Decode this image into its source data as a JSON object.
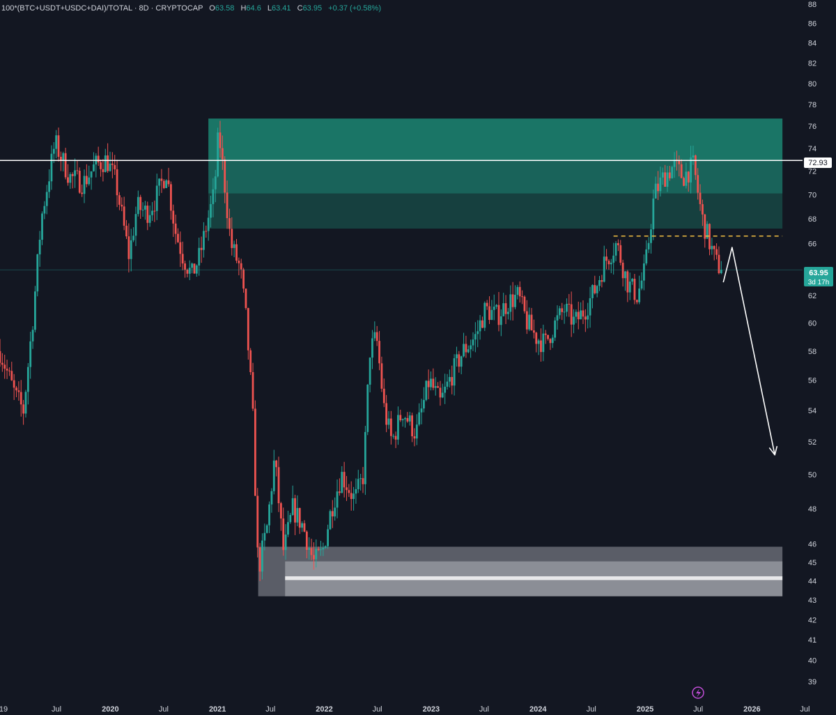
{
  "legend": {
    "symbol": "100*(BTC+USDT+USDC+DAI)/TOTAL · 8D · CRYPTOCAP",
    "open_key": "O",
    "open": "63.58",
    "high_key": "H",
    "high": "64.6",
    "low_key": "L",
    "low": "63.41",
    "close_key": "C",
    "close": "63.95",
    "change": "+0.37 (+0.58%)"
  },
  "price_tags": {
    "level": "72.93",
    "last_price": "63.95",
    "countdown": "3d 17h"
  },
  "colors": {
    "background": "#131722",
    "up": "#26a69a",
    "down": "#ef5350",
    "supply_zone": "#1f9e86",
    "demand_zone": "#9598a1",
    "level_line": "#ffffff",
    "dashed_level": "#f5c242",
    "projection_arrow": "#ffffff"
  },
  "chart_data": {
    "type": "candlestick",
    "interval": "8D",
    "scale": "log",
    "ylim": [
      38.7,
      88
    ],
    "y_ticks": [
      39,
      40,
      41,
      42,
      43,
      44,
      45,
      46,
      48,
      50,
      52,
      54,
      56,
      58,
      60,
      62,
      64,
      66,
      68,
      70,
      72,
      74,
      76,
      78,
      80,
      82,
      84,
      86,
      88
    ],
    "x_axis": {
      "range": [
        "2018-12-20",
        "2026-10-15"
      ],
      "ticks": [
        {
          "date": "2019-01-01",
          "label": "19"
        },
        {
          "date": "2019-07-01",
          "label": "Jul"
        },
        {
          "date": "2020-01-01",
          "label": "2020"
        },
        {
          "date": "2020-07-01",
          "label": "Jul"
        },
        {
          "date": "2021-01-01",
          "label": "2021"
        },
        {
          "date": "2021-07-01",
          "label": "Jul"
        },
        {
          "date": "2022-01-01",
          "label": "2022"
        },
        {
          "date": "2022-07-01",
          "label": "Jul"
        },
        {
          "date": "2023-01-01",
          "label": "2023"
        },
        {
          "date": "2023-07-01",
          "label": "Jul"
        },
        {
          "date": "2024-01-01",
          "label": "2024"
        },
        {
          "date": "2024-07-01",
          "label": "Jul"
        },
        {
          "date": "2025-01-01",
          "label": "2025"
        },
        {
          "date": "2025-07-01",
          "label": "Jul"
        },
        {
          "date": "2026-01-01",
          "label": "2026"
        },
        {
          "date": "2026-07-01",
          "label": "Jul"
        }
      ]
    },
    "price_path": [
      [
        "2018-12-20",
        58
      ],
      [
        "2019-02-10",
        55
      ],
      [
        "2019-03-10",
        54
      ],
      [
        "2019-04-10",
        60
      ],
      [
        "2019-05-10",
        68
      ],
      [
        "2019-06-26",
        74.5
      ],
      [
        "2019-08-15",
        71.5
      ],
      [
        "2019-10-01",
        71
      ],
      [
        "2019-11-10",
        72.5
      ],
      [
        "2019-12-20",
        73
      ],
      [
        "2020-01-20",
        71
      ],
      [
        "2020-03-05",
        65
      ],
      [
        "2020-04-01",
        69
      ],
      [
        "2020-05-05",
        68.5
      ],
      [
        "2020-06-01",
        69.5
      ],
      [
        "2020-07-10",
        72
      ],
      [
        "2020-08-10",
        67
      ],
      [
        "2020-09-05",
        65
      ],
      [
        "2020-10-05",
        63.5
      ],
      [
        "2020-11-01",
        65
      ],
      [
        "2020-11-25",
        67.5
      ],
      [
        "2020-12-20",
        70
      ],
      [
        "2021-01-05",
        75.5
      ],
      [
        "2021-01-25",
        71
      ],
      [
        "2021-02-15",
        66
      ],
      [
        "2021-03-20",
        64
      ],
      [
        "2021-04-10",
        60
      ],
      [
        "2021-05-01",
        54
      ],
      [
        "2021-05-20",
        44.5
      ],
      [
        "2021-06-20",
        47
      ],
      [
        "2021-07-15",
        51
      ],
      [
        "2021-08-15",
        45.5
      ],
      [
        "2021-09-15",
        48
      ],
      [
        "2021-10-20",
        47
      ],
      [
        "2021-11-25",
        45
      ],
      [
        "2021-12-25",
        45.5
      ],
      [
        "2022-01-25",
        48
      ],
      [
        "2022-03-01",
        50
      ],
      [
        "2022-04-15",
        48.5
      ],
      [
        "2022-05-15",
        50
      ],
      [
        "2022-06-05",
        58
      ],
      [
        "2022-06-28",
        59
      ],
      [
        "2022-07-25",
        54
      ],
      [
        "2022-08-20",
        52
      ],
      [
        "2022-09-25",
        54
      ],
      [
        "2022-11-10",
        52.5
      ],
      [
        "2022-12-25",
        56
      ],
      [
        "2023-02-01",
        54.5
      ],
      [
        "2023-03-15",
        56.5
      ],
      [
        "2023-04-20",
        58
      ],
      [
        "2023-06-01",
        59
      ],
      [
        "2023-07-05",
        61
      ],
      [
        "2023-08-15",
        60.5
      ],
      [
        "2023-09-20",
        61.5
      ],
      [
        "2023-10-25",
        62
      ],
      [
        "2023-11-25",
        60
      ],
      [
        "2023-12-25",
        59
      ],
      [
        "2024-01-25",
        58.5
      ],
      [
        "2024-03-01",
        60
      ],
      [
        "2024-04-01",
        61
      ],
      [
        "2024-05-05",
        60
      ],
      [
        "2024-06-10",
        61
      ],
      [
        "2024-07-15",
        62.5
      ],
      [
        "2024-08-15",
        64.5
      ],
      [
        "2024-09-25",
        66
      ],
      [
        "2024-11-01",
        63
      ],
      [
        "2024-12-05",
        62
      ],
      [
        "2025-01-01",
        64
      ],
      [
        "2025-02-01",
        70
      ],
      [
        "2025-03-05",
        71.5
      ],
      [
        "2025-04-10",
        72.5
      ],
      [
        "2025-05-10",
        71.5
      ],
      [
        "2025-06-15",
        72.5
      ],
      [
        "2025-07-15",
        68
      ],
      [
        "2025-08-10",
        66
      ],
      [
        "2025-08-31",
        64.5
      ],
      [
        "2025-09-20",
        63.95
      ]
    ],
    "annotations": {
      "horizontal_level": {
        "value": 72.93
      },
      "supply_zone": {
        "x": [
          "2020-12-01",
          "2026-04-15"
        ],
        "y": [
          67.2,
          76.7
        ],
        "inner_band": [
          70.1,
          72.93
        ]
      },
      "dashed_level": {
        "value": 66.6,
        "x": [
          "2024-09-15",
          "2026-04-15"
        ]
      },
      "projection_arrow": {
        "points": [
          [
            "2025-09-25",
            63
          ],
          [
            "2025-10-25",
            65.7
          ],
          [
            "2026-03-20",
            51.2
          ]
        ]
      },
      "demand_zone": {
        "x": [
          "2021-05-20",
          "2026-04-15"
        ],
        "y": [
          43.2,
          45.85
        ],
        "inner_band": [
          44.05,
          44.25
        ]
      },
      "last_price_line": {
        "value": 63.95
      }
    }
  }
}
